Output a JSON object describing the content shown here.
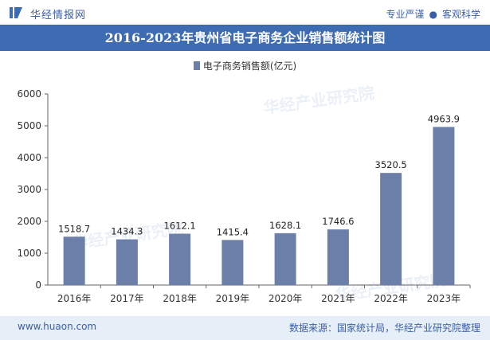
{
  "header": {
    "brand": "华经情报网",
    "slogan_left": "专业严谨",
    "slogan_right": "客观科学",
    "title": "2016-2023年贵州省电子商务企业销售额统计图"
  },
  "watermark": {
    "cn": "华经产业研究院",
    "en": "www.huaon.com"
  },
  "footer": {
    "url": "www.huaon.com",
    "source": "数据来源：国家统计局，华经产业研究院整理"
  },
  "colors": {
    "bar": "#6b7fa8",
    "accent": "#3d6cb3",
    "footer_bg": "#e6eef8"
  },
  "chart_data": {
    "type": "bar",
    "title": "2016-2023年贵州省电子商务企业销售额统计图",
    "categories": [
      "2016年",
      "2017年",
      "2018年",
      "2019年",
      "2020年",
      "2021年",
      "2022年",
      "2023年"
    ],
    "series": [
      {
        "name": "电子商务销售额(亿元)",
        "values": [
          1518.7,
          1434.3,
          1612.1,
          1415.4,
          1628.1,
          1746.6,
          3520.5,
          4963.9
        ]
      }
    ],
    "data_labels": [
      "1518.7",
      "1434.3",
      "1612.1",
      "1415.4",
      "1628.1",
      "1746.6",
      "3520.5",
      "4963.9"
    ],
    "ylim": [
      0,
      6000
    ],
    "yticks": [
      0,
      1000,
      2000,
      3000,
      4000,
      5000,
      6000
    ],
    "ytick_labels": [
      "0",
      "1000",
      "2000",
      "3000",
      "4000",
      "5000",
      "6000"
    ],
    "legend_position": "top-center",
    "grid": false
  }
}
